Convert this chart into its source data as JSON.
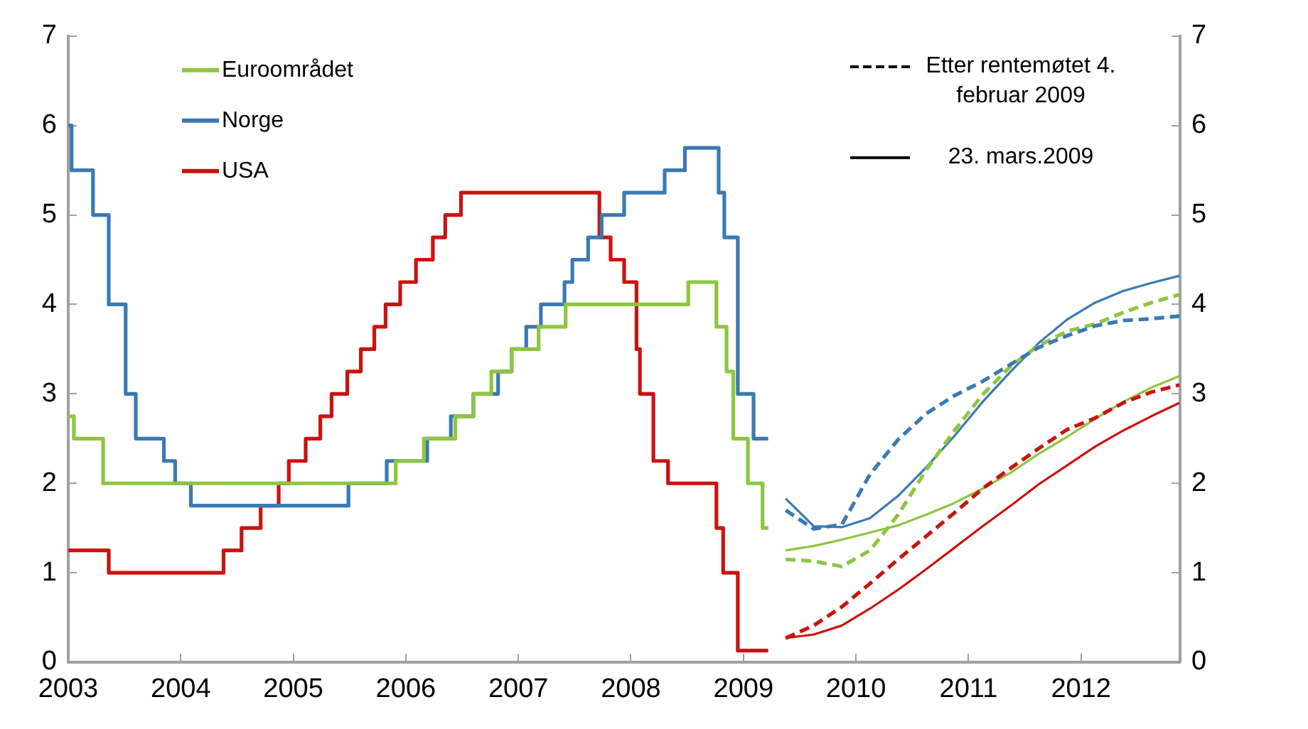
{
  "chart_data": {
    "type": "line",
    "xlim": [
      2003,
      2012.88
    ],
    "xticks": [
      2003,
      2004,
      2005,
      2006,
      2007,
      2008,
      2009,
      2010,
      2011,
      2012
    ],
    "ylim": [
      0,
      7
    ],
    "yticks": [
      0,
      1,
      2,
      3,
      4,
      5,
      6,
      7
    ],
    "y2lim": [
      0,
      7
    ],
    "y2ticks": [
      0,
      1,
      2,
      3,
      4,
      5,
      6,
      7
    ],
    "grid": false,
    "legend": "top",
    "marker": "none",
    "annotations": [
      "Etter rentemøtet 4. februar 2009",
      "23. mars.2009"
    ],
    "series": [
      {
        "name": "Euroområdet",
        "type": "step",
        "color": "#8dc63f",
        "line_style": "solid",
        "x": [
          2003,
          2003.05,
          2003.31,
          2005.91,
          2006.16,
          2006.44,
          2006.6,
          2006.76,
          2006.94,
          2007.18,
          2007.42,
          2008.51,
          2008.76,
          2008.85,
          2008.91,
          2009.04,
          2009.17,
          2009.22
        ],
        "values": [
          2.75,
          2.5,
          2,
          2.25,
          2.5,
          2.75,
          3,
          3.25,
          3.5,
          3.75,
          4,
          4.25,
          3.75,
          3.25,
          2.5,
          2,
          1.5,
          1.5
        ]
      },
      {
        "name": "Norge",
        "type": "step",
        "color": "#3a7ab3",
        "line_style": "solid",
        "x": [
          2003,
          2003.03,
          2003.22,
          2003.36,
          2003.51,
          2003.6,
          2003.85,
          2003.95,
          2004.09,
          2005.49,
          2005.83,
          2006.19,
          2006.4,
          2006.6,
          2006.82,
          2006.94,
          2007.07,
          2007.2,
          2007.41,
          2007.48,
          2007.62,
          2007.74,
          2007.94,
          2008.3,
          2008.48,
          2008.78,
          2008.83,
          2008.95,
          2009.09,
          2009.22
        ],
        "values": [
          6,
          5.5,
          5,
          4,
          3,
          2.5,
          2.25,
          2,
          1.75,
          2,
          2.25,
          2.5,
          2.75,
          3,
          3.25,
          3.5,
          3.75,
          4,
          4.25,
          4.5,
          4.75,
          5,
          5.25,
          5.5,
          5.75,
          5.25,
          4.75,
          3,
          2.5,
          2.5
        ]
      },
      {
        "name": "USA",
        "type": "step",
        "color": "#c8140f",
        "line_style": "solid",
        "x": [
          2003,
          2003.36,
          2004.38,
          2004.54,
          2004.71,
          2004.87,
          2004.96,
          2005.11,
          2005.24,
          2005.34,
          2005.48,
          2005.6,
          2005.72,
          2005.82,
          2005.95,
          2006.09,
          2006.24,
          2006.35,
          2006.49,
          2007.72,
          2007.82,
          2007.94,
          2008.05,
          2008.08,
          2008.2,
          2008.33,
          2008.76,
          2008.82,
          2008.95,
          2009.22
        ],
        "values": [
          1.25,
          1,
          1.25,
          1.5,
          1.75,
          2,
          2.25,
          2.5,
          2.75,
          3,
          3.25,
          3.5,
          3.75,
          4,
          4.25,
          4.5,
          4.75,
          5,
          5.25,
          4.75,
          4.5,
          4.25,
          3.5,
          3,
          2.25,
          2,
          1.5,
          1,
          0.13,
          0.13
        ]
      },
      {
        "type": "line",
        "color": "#3a7ab3",
        "line_style": "dashed",
        "x": [
          2009.375,
          2009.625,
          2009.875,
          2010.125,
          2010.375,
          2010.625,
          2010.875,
          2011.125,
          2011.375,
          2011.625,
          2011.875,
          2012.125,
          2012.375,
          2012.625,
          2012.875
        ],
        "values": [
          1.7,
          1.49,
          1.54,
          2.1,
          2.49,
          2.78,
          2.98,
          3.14,
          3.33,
          3.52,
          3.65,
          3.76,
          3.82,
          3.84,
          3.87
        ]
      },
      {
        "type": "line",
        "color": "#8dc63f",
        "line_style": "dashed",
        "x": [
          2009.375,
          2009.625,
          2009.875,
          2010.125,
          2010.375,
          2010.625,
          2010.875,
          2011.125,
          2011.375,
          2011.625,
          2011.875,
          2012.125,
          2012.375,
          2012.625,
          2012.875
        ],
        "values": [
          1.15,
          1.13,
          1.07,
          1.25,
          1.65,
          2.15,
          2.59,
          2.99,
          3.31,
          3.54,
          3.7,
          3.78,
          3.91,
          4.02,
          4.11
        ]
      },
      {
        "type": "line",
        "color": "#c8140f",
        "line_style": "dashed",
        "x": [
          2009.375,
          2009.625,
          2009.875,
          2010.125,
          2010.375,
          2010.625,
          2010.875,
          2011.125,
          2011.375,
          2011.625,
          2011.875,
          2012.125,
          2012.375,
          2012.625,
          2012.875
        ],
        "values": [
          0.27,
          0.41,
          0.62,
          0.88,
          1.15,
          1.41,
          1.67,
          1.94,
          2.17,
          2.39,
          2.6,
          2.73,
          2.9,
          3.02,
          3.1
        ]
      },
      {
        "type": "line",
        "color": "#3a7ab3",
        "line_style": "solid",
        "x": [
          2009.375,
          2009.625,
          2009.875,
          2010.125,
          2010.375,
          2010.625,
          2010.875,
          2011.125,
          2011.375,
          2011.625,
          2011.875,
          2012.125,
          2012.375,
          2012.625,
          2012.875
        ],
        "values": [
          1.83,
          1.52,
          1.51,
          1.61,
          1.86,
          2.18,
          2.53,
          2.91,
          3.25,
          3.57,
          3.83,
          4.02,
          4.15,
          4.24,
          4.32
        ]
      },
      {
        "type": "line",
        "color": "#8dc63f",
        "line_style": "solid",
        "x": [
          2009.375,
          2009.625,
          2009.875,
          2010.125,
          2010.375,
          2010.625,
          2010.875,
          2011.125,
          2011.375,
          2011.625,
          2011.875,
          2012.125,
          2012.375,
          2012.625,
          2012.875
        ],
        "values": [
          1.25,
          1.3,
          1.37,
          1.45,
          1.53,
          1.65,
          1.78,
          1.94,
          2.12,
          2.33,
          2.52,
          2.72,
          2.91,
          3.07,
          3.2
        ]
      },
      {
        "type": "line",
        "color": "#c8140f",
        "line_style": "solid",
        "x": [
          2009.375,
          2009.625,
          2009.875,
          2010.125,
          2010.375,
          2010.625,
          2010.875,
          2011.125,
          2011.375,
          2011.625,
          2011.875,
          2012.125,
          2012.375,
          2012.625,
          2012.875
        ],
        "values": [
          0.27,
          0.31,
          0.41,
          0.6,
          0.81,
          1.04,
          1.28,
          1.52,
          1.75,
          1.99,
          2.2,
          2.41,
          2.59,
          2.75,
          2.9
        ]
      }
    ]
  }
}
